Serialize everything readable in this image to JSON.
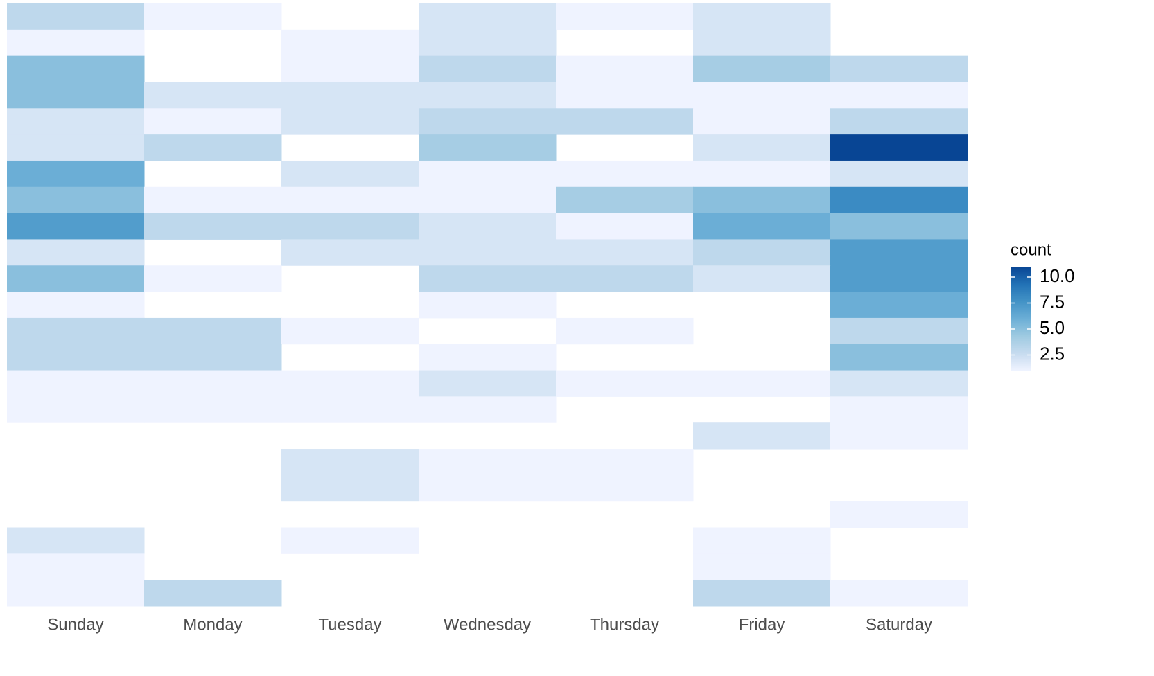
{
  "chart_data": {
    "type": "heatmap",
    "categories": [
      "Sunday",
      "Monday",
      "Tuesday",
      "Wednesday",
      "Thursday",
      "Friday",
      "Saturday"
    ],
    "values": [
      [
        3,
        1,
        null,
        2,
        1,
        2,
        null
      ],
      [
        1,
        null,
        1,
        2,
        null,
        2,
        null
      ],
      [
        5,
        null,
        1,
        3,
        1,
        4,
        3
      ],
      [
        5,
        2,
        2,
        2,
        1,
        1,
        1
      ],
      [
        2,
        1,
        2,
        3,
        3,
        1,
        3
      ],
      [
        2,
        3,
        null,
        4,
        null,
        2,
        11
      ],
      [
        6,
        null,
        2,
        1,
        1,
        1,
        2
      ],
      [
        5,
        1,
        1,
        1,
        4,
        5,
        8
      ],
      [
        7,
        3,
        3,
        2,
        1,
        6,
        5
      ],
      [
        2,
        null,
        2,
        2,
        2,
        3,
        7
      ],
      [
        5,
        1,
        null,
        3,
        3,
        2,
        7
      ],
      [
        1,
        null,
        null,
        1,
        null,
        null,
        6
      ],
      [
        3,
        3,
        1,
        null,
        1,
        null,
        3
      ],
      [
        3,
        3,
        null,
        1,
        null,
        null,
        5
      ],
      [
        1,
        1,
        1,
        2,
        1,
        1,
        2
      ],
      [
        1,
        1,
        1,
        1,
        null,
        null,
        1
      ],
      [
        null,
        null,
        null,
        null,
        null,
        2,
        1
      ],
      [
        null,
        null,
        2,
        1,
        1,
        null,
        null
      ],
      [
        null,
        null,
        2,
        1,
        1,
        null,
        null
      ],
      [
        null,
        null,
        null,
        null,
        null,
        null,
        1
      ],
      [
        2,
        null,
        1,
        null,
        null,
        1,
        null
      ],
      [
        1,
        null,
        null,
        null,
        null,
        1,
        null
      ],
      [
        1,
        3,
        null,
        null,
        null,
        3,
        1
      ]
    ],
    "legend_title": "count",
    "clim": [
      1,
      11
    ],
    "cticks": [
      2.5,
      {
        "value": 5,
        "label": "5.0"
      },
      7.5,
      {
        "value": 10,
        "label": "10.0"
      }
    ],
    "colors": [
      "#eff3ff",
      "#c6dbef",
      "#9ecae1",
      "#6baed6",
      "#4292c6",
      "#2171b5",
      "#084594"
    ]
  }
}
